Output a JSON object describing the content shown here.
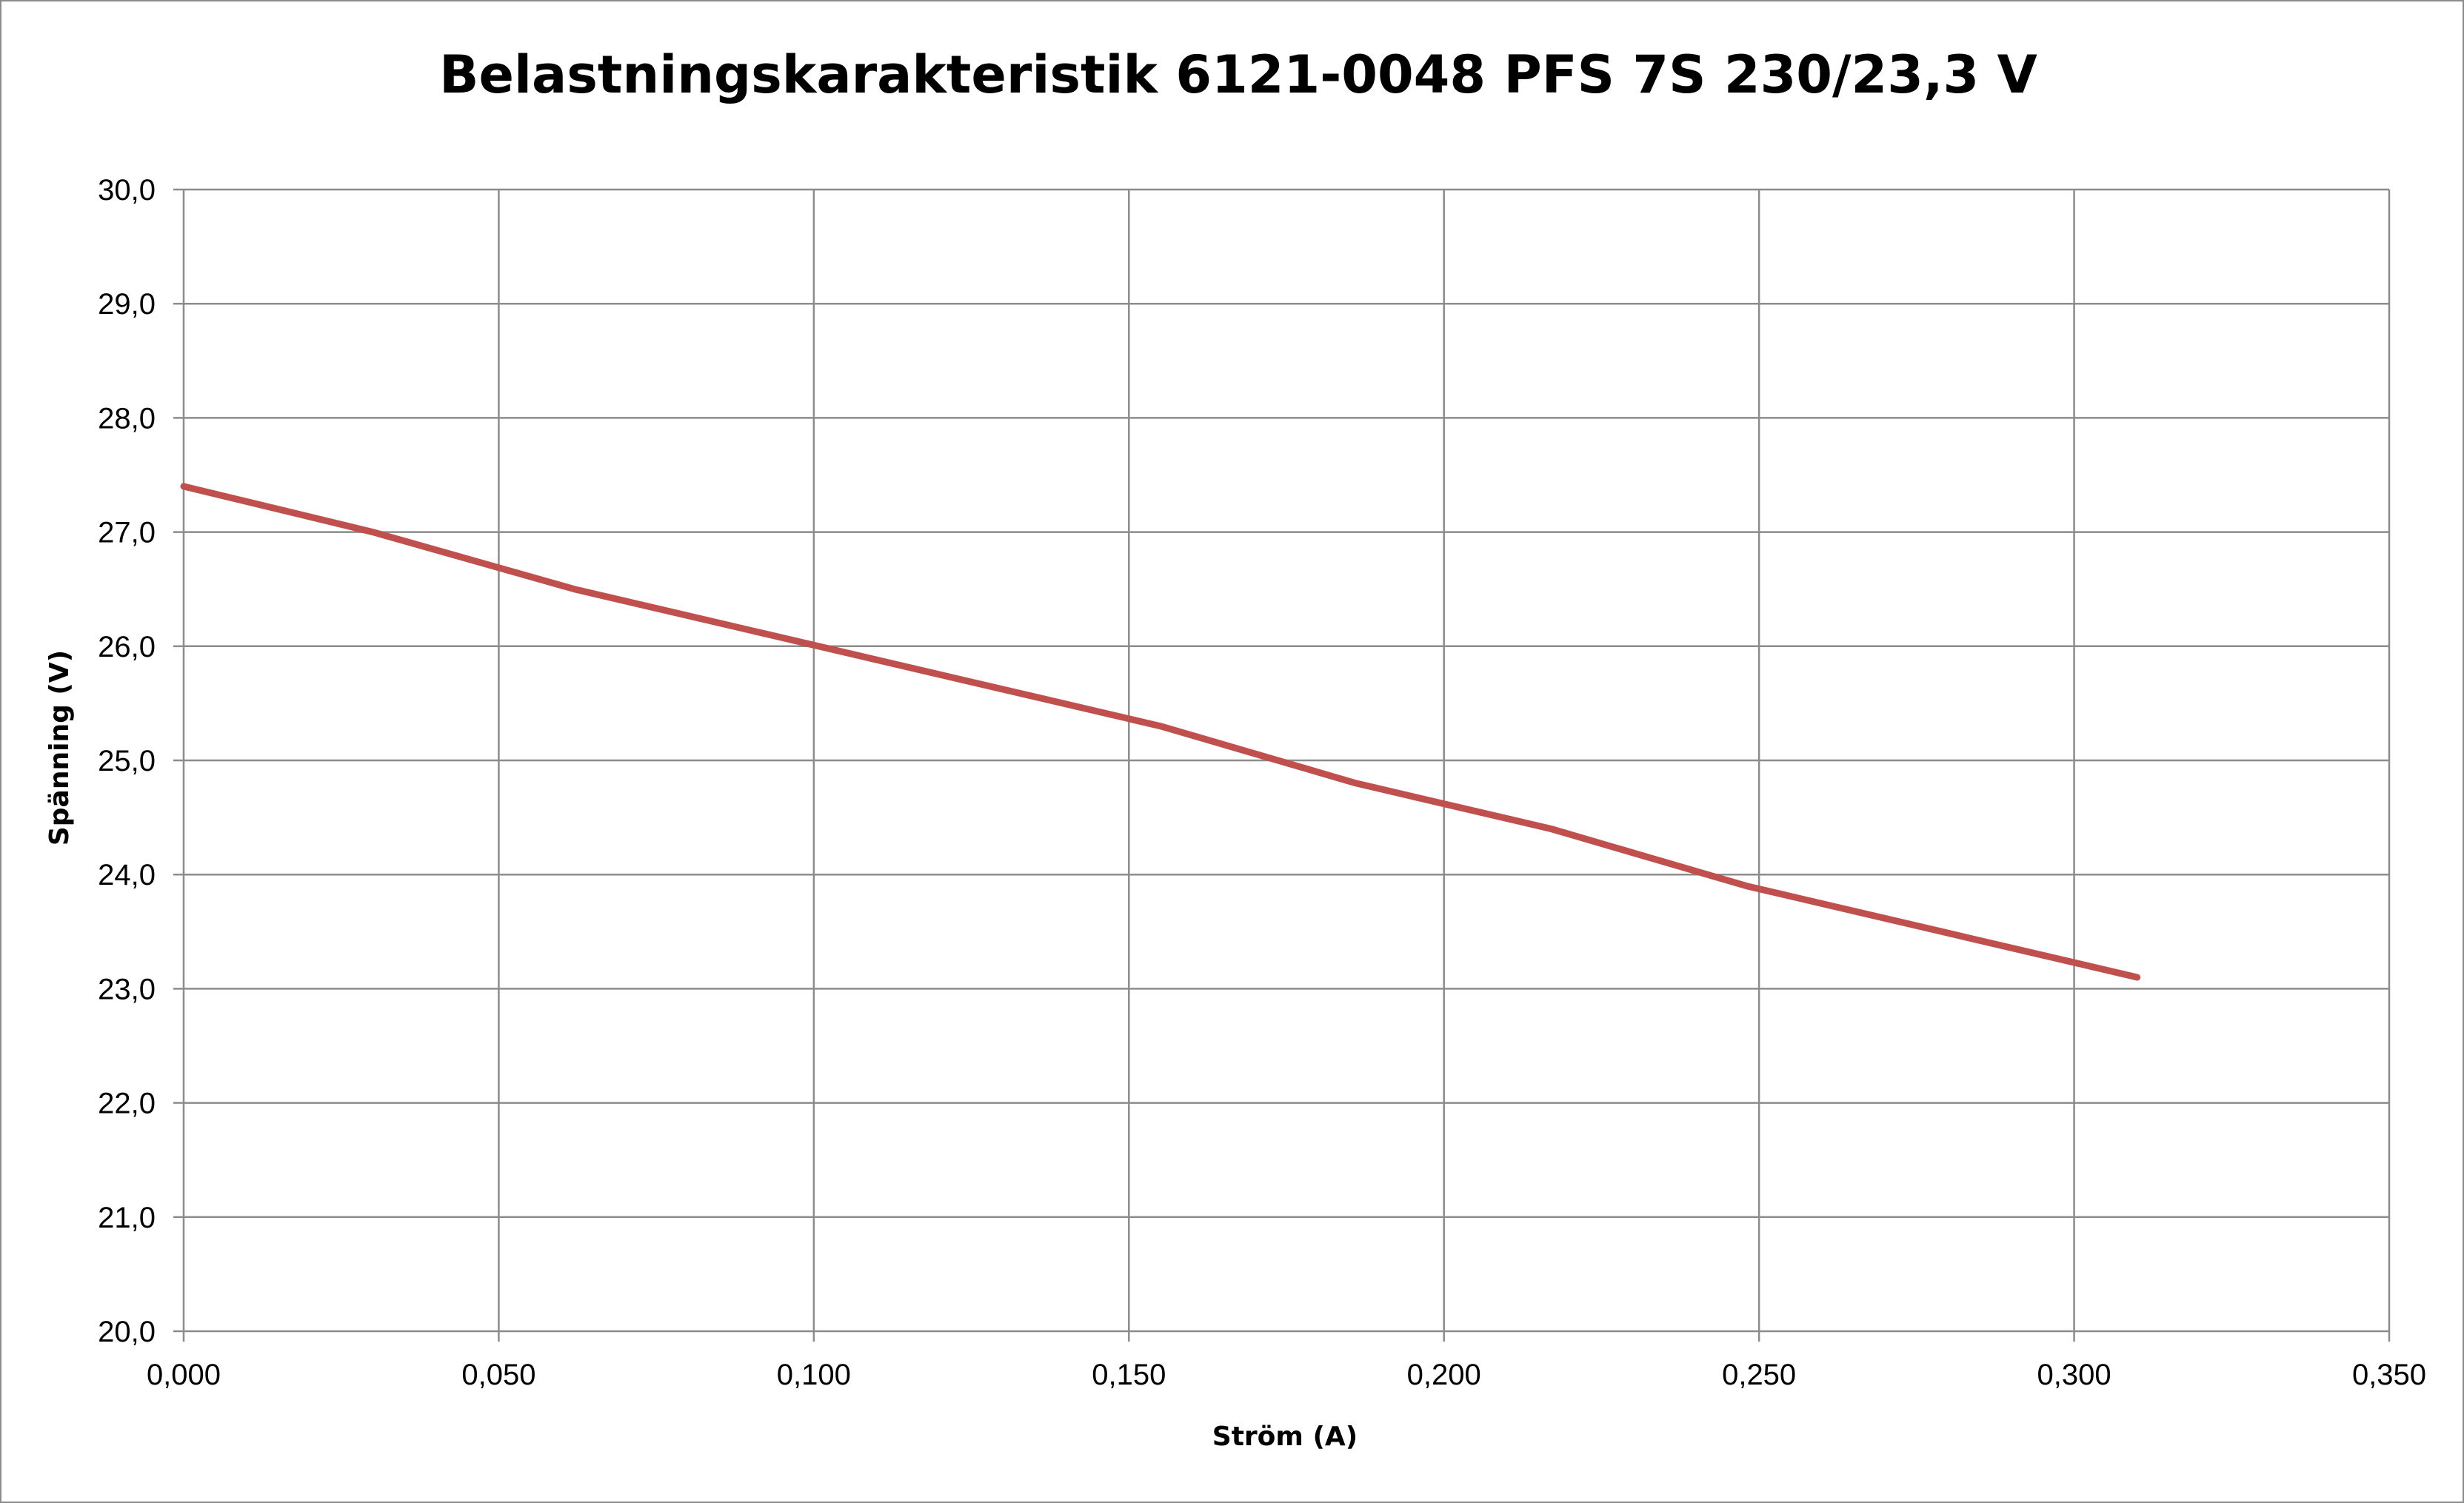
{
  "chart_data": {
    "type": "line",
    "title": "Belastningskarakteristik 6121-0048 PFS 7S 230/23,3 V",
    "xlabel": "Ström (A)",
    "ylabel": "Spänning (V)",
    "xlim": [
      0,
      0.35
    ],
    "ylim": [
      20,
      30
    ],
    "x_ticks": [
      0,
      0.05,
      0.1,
      0.15,
      0.2,
      0.25,
      0.3,
      0.35
    ],
    "y_ticks": [
      20,
      21,
      22,
      23,
      24,
      25,
      26,
      27,
      28,
      29,
      30
    ],
    "x_tick_labels": [
      "0,000",
      "0,050",
      "0,100",
      "0,150",
      "0,200",
      "0,250",
      "0,300",
      "0,350"
    ],
    "y_tick_labels": [
      "20,0",
      "21,0",
      "22,0",
      "23,0",
      "24,0",
      "25,0",
      "26,0",
      "27,0",
      "28,0",
      "29,0",
      "30,0"
    ],
    "grid": true,
    "legend": "none",
    "series": [
      {
        "color": "#c0504d",
        "x": [
          0.0,
          0.03,
          0.062,
          0.093,
          0.124,
          0.155,
          0.186,
          0.217,
          0.248,
          0.279,
          0.31
        ],
        "y": [
          27.4,
          27.0,
          26.5,
          26.1,
          25.7,
          25.3,
          24.8,
          24.4,
          23.9,
          23.5,
          23.1
        ]
      }
    ]
  }
}
